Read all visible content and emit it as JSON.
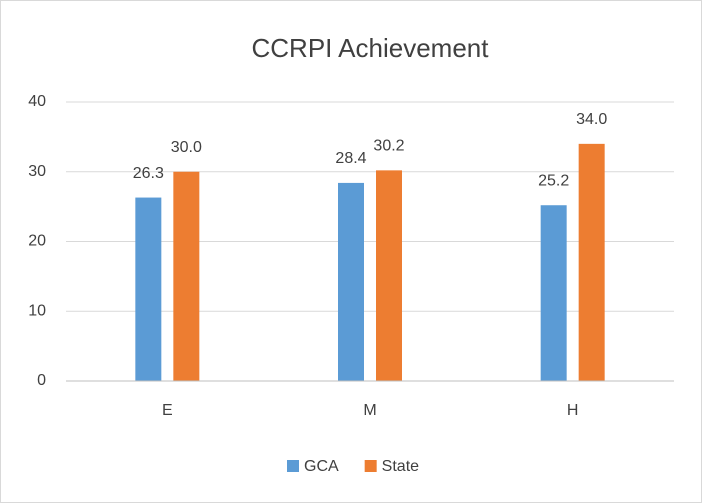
{
  "chart_data": {
    "type": "bar",
    "title": "CCRPI Achievement",
    "categories": [
      "E",
      "M",
      "H"
    ],
    "series": [
      {
        "name": "GCA",
        "color": "#5b9bd5",
        "values": [
          26.3,
          28.4,
          25.2
        ],
        "value_labels": [
          "26.3",
          "28.4",
          "25.2"
        ]
      },
      {
        "name": "State",
        "color": "#ed7d31",
        "values": [
          30.0,
          30.2,
          34.0
        ],
        "value_labels": [
          "30.0",
          "30.2",
          "34.0"
        ]
      }
    ],
    "ylim": [
      0,
      40
    ],
    "yticks": [
      0,
      10,
      20,
      30,
      40
    ],
    "grid": true,
    "legend": "bottom"
  }
}
